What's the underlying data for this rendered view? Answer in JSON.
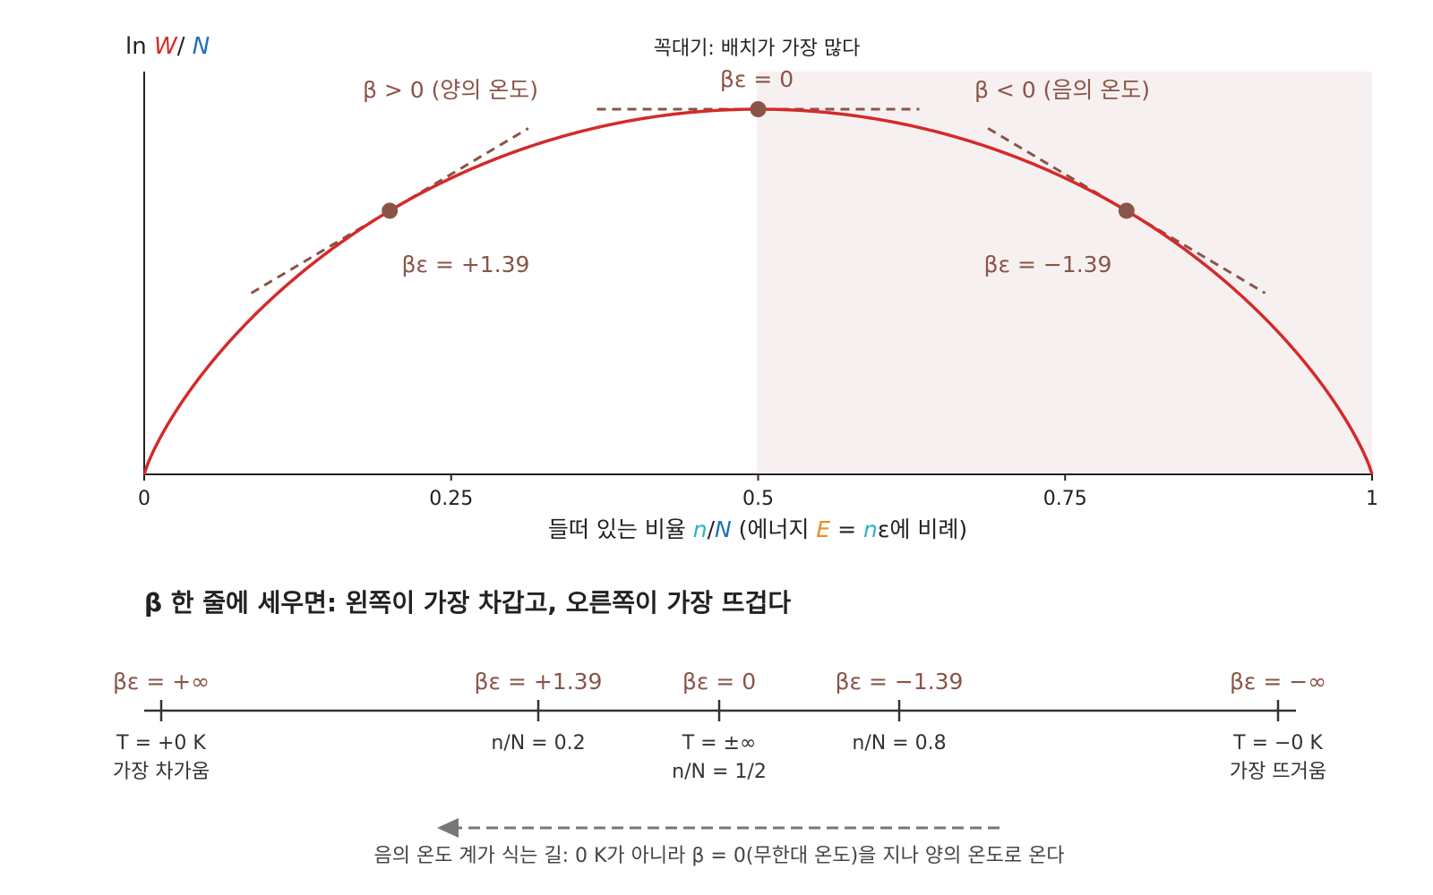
{
  "top_plot": {
    "y_label": {
      "prefix": "ln ",
      "w": "W",
      "slash": "/ ",
      "n": "N"
    },
    "x_ticks": [
      "0",
      "0.25",
      "0.5",
      "0.75",
      "1"
    ],
    "x_tick_values": [
      0,
      0.25,
      0.5,
      0.75,
      1
    ],
    "x_label": {
      "part1": "들떠 있는 비율 ",
      "n": "n",
      "slash": "/",
      "N": "N",
      "part2": " (에너지 ",
      "E": "E",
      "eq": " = ",
      "n2": "n",
      "part3": "ε에 비례)"
    },
    "peak_label": "꼭대기: 배치가 가장 많다",
    "peak_beta": "βε = 0",
    "left_region": "β > 0 (양의 온도)",
    "right_region": "β < 0 (음의 온도)",
    "left_point_label": "βε = +1.39",
    "right_point_label": "βε = −1.39",
    "points": [
      {
        "x": 0.2,
        "label": "βε = +1.39"
      },
      {
        "x": 0.5,
        "label": "βε = 0"
      },
      {
        "x": 0.8,
        "label": "βε = −1.39"
      }
    ],
    "colors": {
      "curve": "#d42a2a",
      "tangent": "#8a5448",
      "point": "#8a5448",
      "shade": "#f6f1f0",
      "w_color": "#d42a2a",
      "n_color": "#1f6fb8",
      "n_lower_color": "#2bb3c9",
      "e_color": "#f08a24"
    }
  },
  "bottom": {
    "title": "β 한 줄에 세우면: 왼쪽이 가장 차갑고, 오른쪽이 가장 뜨겁다",
    "ticks": [
      {
        "top": "βε = +∞",
        "line1": "T = +0 K",
        "line2": "가장 차가움"
      },
      {
        "top": "βε = +1.39",
        "line1": "n/N = 0.2",
        "line2": ""
      },
      {
        "top": "βε = 0",
        "line1": "T = ±∞",
        "line2": "n/N = 1/2"
      },
      {
        "top": "βε = −1.39",
        "line1": "n/N = 0.8",
        "line2": ""
      },
      {
        "top": "βε = −∞",
        "line1": "T = −0 K",
        "line2": "가장 뜨거움"
      }
    ],
    "arrow_caption": "음의 온도 계가 식는 길: 0 K가 아니라 β = 0(무한대 온도)을 지나 양의 온도로 온다"
  }
}
